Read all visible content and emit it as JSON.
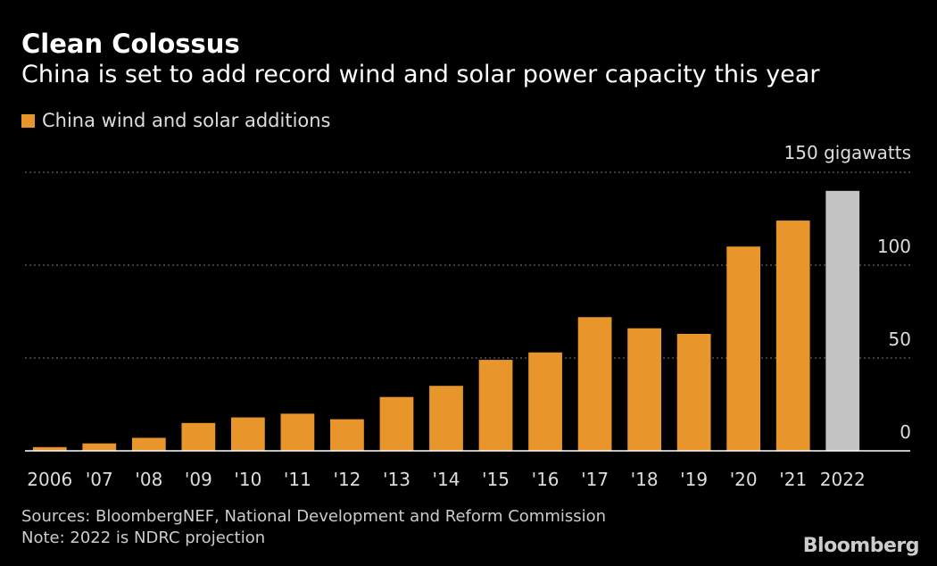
{
  "header": {
    "title": "Clean Colossus",
    "subtitle": "China is set to add record wind and solar power capacity this year"
  },
  "legend": {
    "label": "China wind and solar additions"
  },
  "footer": {
    "sources": "Sources: BloombergNEF, National Development and Reform Commission",
    "note": "Note: 2022 is NDRC projection",
    "brand": "Bloomberg"
  },
  "colors": {
    "bar": "#e8962c",
    "projection": "#c4c4c4",
    "grid": "#777777",
    "axis_text": "#dddddd"
  },
  "chart_data": {
    "type": "bar",
    "categories": [
      "2006",
      "'07",
      "'08",
      "'09",
      "'10",
      "'11",
      "'12",
      "'13",
      "'14",
      "'15",
      "'16",
      "'17",
      "'18",
      "'19",
      "'20",
      "'21",
      "2022"
    ],
    "series": [
      {
        "name": "China wind and solar additions",
        "values": [
          2,
          4,
          7,
          15,
          18,
          20,
          17,
          29,
          35,
          49,
          53,
          72,
          66,
          63,
          110,
          124,
          140
        ]
      }
    ],
    "projected": [
      false,
      false,
      false,
      false,
      false,
      false,
      false,
      false,
      false,
      false,
      false,
      false,
      false,
      false,
      false,
      false,
      true
    ],
    "ylim": [
      0,
      150
    ],
    "yticks": [
      0,
      50,
      100
    ],
    "ytick_labels": [
      "0",
      "50",
      "100"
    ],
    "y_top_label": "150 gigawatts",
    "grid": true,
    "legend_position": "top-left"
  }
}
